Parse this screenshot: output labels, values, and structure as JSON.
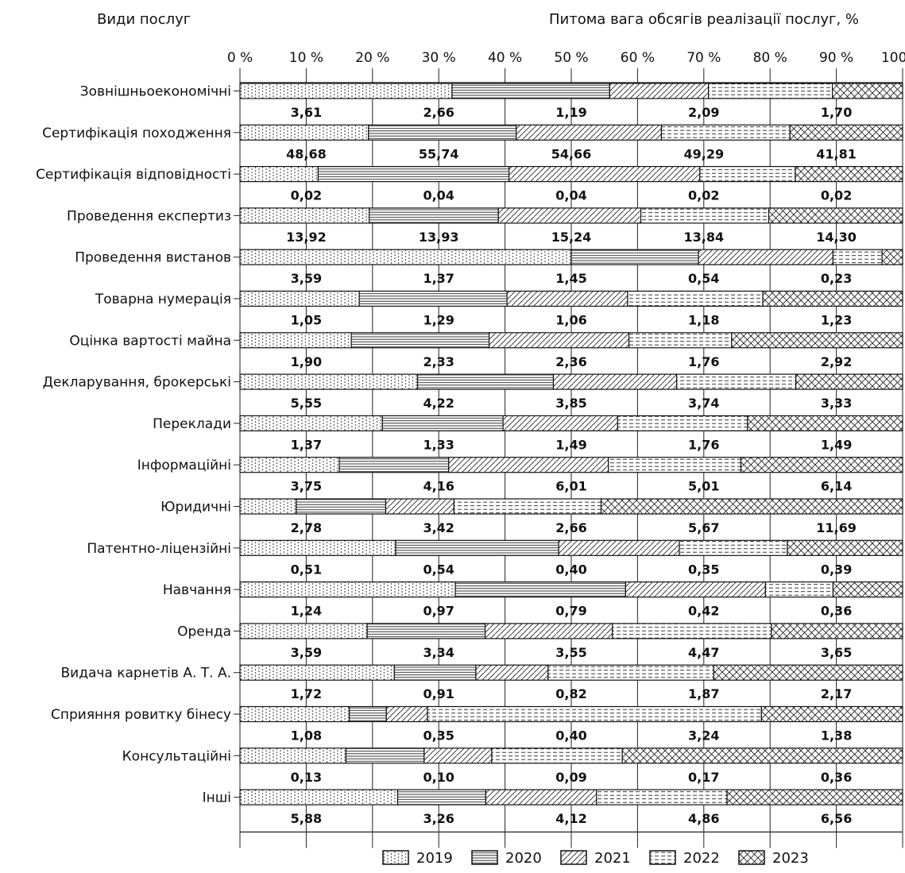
{
  "header": {
    "left_title": "Види послуг",
    "right_title": "Питома вага обсягів реалізації послуг, %"
  },
  "chart_data": {
    "type": "bar",
    "orientation": "horizontal",
    "stacked": "100%",
    "title": "",
    "ylabel": "Види послуг",
    "xlabel": "Питома вага обсягів реалізації послуг, %",
    "xlim": [
      0,
      100
    ],
    "x_ticks": [
      "0 %",
      "10 %",
      "20 %",
      "30 %",
      "40 %",
      "50 %",
      "60 %",
      "70 %",
      "80 %",
      "90 %",
      "100 %"
    ],
    "grid": true,
    "legend_position": "bottom",
    "categories": [
      "Зовнішньоекономічні",
      "Сертифікація походження",
      "Сертифікація відповідності",
      "Проведення експертиз",
      "Проведення вистанов",
      "Товарна нумерація",
      "Оцінка вартості майна",
      "Декларування, брокерські",
      "Переклади",
      "Інформаційні",
      "Юридичні",
      "Патентно-ліцензійні",
      "Навчання",
      "Оренда",
      "Видача карнетів А. Т. А.",
      "Сприяння ровитку бінесу",
      "Консультаційні",
      "Інші"
    ],
    "series": [
      {
        "name": "2019",
        "pattern": "dots",
        "shares": [
          32,
          19.4,
          11.8,
          19.5,
          50,
          18,
          16.8,
          26.8,
          21.5,
          15,
          8.5,
          23.5,
          32.5,
          19.2,
          23.3,
          16.5,
          16,
          23.8
        ],
        "labels": [
          "3,61",
          "48,68",
          "0,02",
          "13,92",
          "3,59",
          "1,05",
          "1,90",
          "5,55",
          "1,37",
          "3,75",
          "2,78",
          "0,51",
          "1,24",
          "3,59",
          "1,72",
          "1,08",
          "0,13",
          "5,88"
        ]
      },
      {
        "name": "2020",
        "pattern": "horizontal-lines",
        "shares": [
          23.8,
          22.3,
          28.8,
          19.5,
          19.2,
          22.3,
          20.8,
          20.5,
          18.2,
          16.5,
          13.5,
          24.6,
          25.7,
          17.8,
          12.3,
          5.6,
          11.8,
          13.3
        ],
        "labels": [
          "2,66",
          "55,74",
          "0,04",
          "13,93",
          "1,37",
          "1,29",
          "2,33",
          "4,22",
          "1,33",
          "4,16",
          "3,42",
          "0,54",
          "0,97",
          "3,34",
          "0,91",
          "0,35",
          "0,10",
          "3,26"
        ]
      },
      {
        "name": "2021",
        "pattern": "diagonal-lines",
        "shares": [
          14.9,
          21.9,
          28.8,
          21.5,
          20.3,
          18.2,
          21.1,
          18.6,
          17.3,
          24.1,
          10.3,
          18.2,
          21.1,
          19.2,
          10.9,
          6.2,
          10.2,
          16.7
        ],
        "labels": [
          "1,19",
          "54,66",
          "0,04",
          "15,24",
          "1,45",
          "1,06",
          "2,36",
          "3,85",
          "1,49",
          "6,01",
          "2,66",
          "0,40",
          "0,79",
          "3,55",
          "0,82",
          "0,40",
          "0,09",
          "4,12"
        ]
      },
      {
        "name": "2022",
        "pattern": "dashed-lines",
        "shares": [
          18.7,
          19.4,
          14.4,
          19.3,
          7.4,
          20.4,
          15.5,
          18,
          19.6,
          20,
          22.2,
          16.3,
          10.2,
          24,
          25,
          50.4,
          19.7,
          19.7
        ],
        "labels": [
          "2,09",
          "49,29",
          "0,02",
          "13,84",
          "0,54",
          "1,18",
          "1,76",
          "3,74",
          "1,76",
          "5,01",
          "5,67",
          "0,35",
          "0,42",
          "4,47",
          "1,87",
          "3,24",
          "0,17",
          "4,86"
        ]
      },
      {
        "name": "2023",
        "pattern": "crosshatch",
        "shares": [
          10.6,
          17,
          16.2,
          20.2,
          3.1,
          21.1,
          25.8,
          16.1,
          23.4,
          24.4,
          45.5,
          17.4,
          10.5,
          19.8,
          28.5,
          21.3,
          42.3,
          26.5
        ],
        "labels": [
          "1,70",
          "41,81",
          "0,02",
          "14,30",
          "0,23",
          "1,23",
          "2,92",
          "3,33",
          "1,49",
          "6,14",
          "11,69",
          "0,39",
          "0,36",
          "3,65",
          "2,17",
          "1,38",
          "0,36",
          "6,56"
        ]
      }
    ]
  },
  "legend": {
    "items": [
      {
        "label": "2019",
        "pattern": "dots"
      },
      {
        "label": "2020",
        "pattern": "horizontal-lines"
      },
      {
        "label": "2021",
        "pattern": "diagonal-lines"
      },
      {
        "label": "2022",
        "pattern": "dashed-lines"
      },
      {
        "label": "2023",
        "pattern": "crosshatch"
      }
    ]
  }
}
